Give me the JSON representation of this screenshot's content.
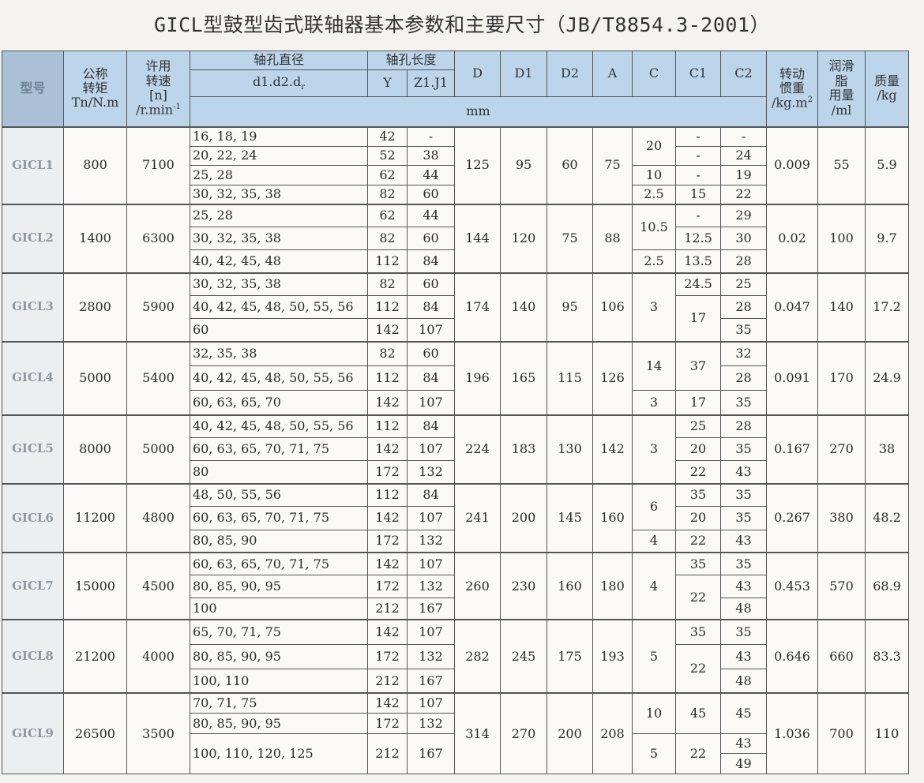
{
  "title": "GICL型鼓型齿式联轴器基本参数和主要尺寸（JB/T8854.3-2001）",
  "header": {
    "model": "型号",
    "torque": [
      "公称",
      "转矩",
      "Tn/N.m"
    ],
    "speed": [
      "许用",
      "转速",
      "[n]",
      "/r.min",
      "-1"
    ],
    "bore_diameter": "轴孔直径",
    "bore_diameter_sub": "d1.d2.d",
    "bore_diameter_sub_index": "r",
    "bore_length": "轴孔长度",
    "y": "Y",
    "z1j1": "Z1.J1",
    "dims": [
      "D",
      "D1",
      "D2",
      "A",
      "C",
      "C1",
      "C2"
    ],
    "unit_mm": "mm",
    "inertia": [
      "转动",
      "惯重",
      "/kg.m",
      "2"
    ],
    "grease": [
      "润滑",
      "脂",
      "用量",
      "/ml"
    ],
    "mass": [
      "质量",
      "/kg"
    ]
  },
  "rows": [
    {
      "model": "GICL1",
      "torque": "800",
      "speed": "7100",
      "bores": [
        {
          "d": "16, 18, 19",
          "y": "42",
          "z": "-",
          "span": 1
        },
        {
          "d": "20, 22, 24",
          "y": "52",
          "z": "38",
          "span": 1
        },
        {
          "d": "25, 28",
          "y": "62",
          "z": "44",
          "span": 1
        },
        {
          "d": "30, 32, 35, 38",
          "y": "82",
          "z": "60",
          "span": 1
        }
      ],
      "D": "125",
      "D1": "95",
      "D2": "60",
      "A": "75",
      "C": [
        {
          "v": "20",
          "span": 2
        },
        {
          "v": "10",
          "span": 1
        },
        {
          "v": "2.5",
          "span": 1
        }
      ],
      "C1": [
        {
          "v": "-",
          "span": 1
        },
        {
          "v": "-",
          "span": 1
        },
        {
          "v": "-",
          "span": 1
        },
        {
          "v": "15",
          "span": 1
        }
      ],
      "C2": [
        {
          "v": "-",
          "span": 1
        },
        {
          "v": "24",
          "span": 1
        },
        {
          "v": "19",
          "span": 1
        },
        {
          "v": "22",
          "span": 1
        }
      ],
      "inertia": "0.009",
      "grease": "55",
      "mass": "5.9"
    },
    {
      "model": "GICL2",
      "torque": "1400",
      "speed": "6300",
      "bores": [
        {
          "d": "25, 28",
          "y": "62",
          "z": "44",
          "span": 1
        },
        {
          "d": "30, 32, 35, 38",
          "y": "82",
          "z": "60",
          "span": 1
        },
        {
          "d": "40, 42, 45, 48",
          "y": "112",
          "z": "84",
          "span": 1
        }
      ],
      "D": "144",
      "D1": "120",
      "D2": "75",
      "A": "88",
      "C": [
        {
          "v": "10.5",
          "span": 2
        },
        {
          "v": "2.5",
          "span": 1
        }
      ],
      "C1": [
        {
          "v": "-",
          "span": 1
        },
        {
          "v": "12.5",
          "span": 1
        },
        {
          "v": "13.5",
          "span": 1
        }
      ],
      "C2": [
        {
          "v": "29",
          "span": 1
        },
        {
          "v": "30",
          "span": 1
        },
        {
          "v": "28",
          "span": 1
        }
      ],
      "inertia": "0.02",
      "grease": "100",
      "mass": "9.7"
    },
    {
      "model": "GICL3",
      "torque": "2800",
      "speed": "5900",
      "bores": [
        {
          "d": "30, 32, 35, 38",
          "y": "82",
          "z": "60",
          "span": 1
        },
        {
          "d": "40, 42, 45, 48, 50, 55, 56",
          "y": "112",
          "z": "84",
          "span": 1
        },
        {
          "d": "60",
          "y": "142",
          "z": "107",
          "span": 1
        }
      ],
      "D": "174",
      "D1": "140",
      "D2": "95",
      "A": "106",
      "C": [
        {
          "v": "3",
          "span": 3
        }
      ],
      "C1": [
        {
          "v": "24.5",
          "span": 1
        },
        {
          "v": "17",
          "span": 2
        }
      ],
      "C2": [
        {
          "v": "25",
          "span": 1
        },
        {
          "v": "28",
          "span": 1
        },
        {
          "v": "35",
          "span": 1
        }
      ],
      "inertia": "0.047",
      "grease": "140",
      "mass": "17.2"
    },
    {
      "model": "GICL4",
      "torque": "5000",
      "speed": "5400",
      "bores": [
        {
          "d": "32, 35, 38",
          "y": "82",
          "z": "60",
          "span": 1
        },
        {
          "d": "40, 42, 45, 48, 50, 55, 56",
          "y": "112",
          "z": "84",
          "span": 1
        },
        {
          "d": "60, 63, 65, 70",
          "y": "142",
          "z": "107",
          "span": 1
        }
      ],
      "D": "196",
      "D1": "165",
      "D2": "115",
      "A": "126",
      "C": [
        {
          "v": "14",
          "span": 2
        },
        {
          "v": "3",
          "span": 1
        }
      ],
      "C1": [
        {
          "v": "37",
          "span": 2
        },
        {
          "v": "17",
          "span": 1
        }
      ],
      "C2": [
        {
          "v": "32",
          "span": 1
        },
        {
          "v": "28",
          "span": 1
        },
        {
          "v": "35",
          "span": 1
        }
      ],
      "inertia": "0.091",
      "grease": "170",
      "mass": "24.9"
    },
    {
      "model": "GICL5",
      "torque": "8000",
      "speed": "5000",
      "bores": [
        {
          "d": "40, 42, 45, 48, 50, 55, 56",
          "y": "112",
          "z": "84",
          "span": 1
        },
        {
          "d": "60, 63, 65, 70, 71, 75",
          "y": "142",
          "z": "107",
          "span": 1
        },
        {
          "d": "80",
          "y": "172",
          "z": "132",
          "span": 1
        }
      ],
      "D": "224",
      "D1": "183",
      "D2": "130",
      "A": "142",
      "C": [
        {
          "v": "3",
          "span": 3
        }
      ],
      "C1": [
        {
          "v": "25",
          "span": 1
        },
        {
          "v": "20",
          "span": 1
        },
        {
          "v": "22",
          "span": 1
        }
      ],
      "C2": [
        {
          "v": "28",
          "span": 1
        },
        {
          "v": "35",
          "span": 1
        },
        {
          "v": "43",
          "span": 1
        }
      ],
      "inertia": "0.167",
      "grease": "270",
      "mass": "38"
    },
    {
      "model": "GICL6",
      "torque": "11200",
      "speed": "4800",
      "bores": [
        {
          "d": "48, 50, 55, 56",
          "y": "112",
          "z": "84",
          "span": 1
        },
        {
          "d": "60, 63, 65, 70, 71, 75",
          "y": "142",
          "z": "107",
          "span": 1
        },
        {
          "d": "80, 85, 90",
          "y": "172",
          "z": "132",
          "span": 1
        }
      ],
      "D": "241",
      "D1": "200",
      "D2": "145",
      "A": "160",
      "C": [
        {
          "v": "6",
          "span": 2
        },
        {
          "v": "4",
          "span": 1
        }
      ],
      "C1": [
        {
          "v": "35",
          "span": 1
        },
        {
          "v": "20",
          "span": 1
        },
        {
          "v": "22",
          "span": 1
        }
      ],
      "C2": [
        {
          "v": "35",
          "span": 1
        },
        {
          "v": "35",
          "span": 1
        },
        {
          "v": "43",
          "span": 1
        }
      ],
      "inertia": "0.267",
      "grease": "380",
      "mass": "48.2"
    },
    {
      "model": "GICL7",
      "torque": "15000",
      "speed": "4500",
      "bores": [
        {
          "d": "60, 63, 65, 70, 71, 75",
          "y": "142",
          "z": "107",
          "span": 1
        },
        {
          "d": "80, 85, 90, 95",
          "y": "172",
          "z": "132",
          "span": 1
        },
        {
          "d": "100",
          "y": "212",
          "z": "167",
          "span": 1
        }
      ],
      "D": "260",
      "D1": "230",
      "D2": "160",
      "A": "180",
      "C": [
        {
          "v": "4",
          "span": 3
        }
      ],
      "C1": [
        {
          "v": "35",
          "span": 1
        },
        {
          "v": "22",
          "span": 2
        }
      ],
      "C2": [
        {
          "v": "35",
          "span": 1
        },
        {
          "v": "43",
          "span": 1
        },
        {
          "v": "48",
          "span": 1
        }
      ],
      "inertia": "0.453",
      "grease": "570",
      "mass": "68.9"
    },
    {
      "model": "GICL8",
      "torque": "21200",
      "speed": "4000",
      "bores": [
        {
          "d": "65, 70, 71, 75",
          "y": "142",
          "z": "107",
          "span": 1
        },
        {
          "d": "80, 85, 90, 95",
          "y": "172",
          "z": "132",
          "span": 1
        },
        {
          "d": "100, 110",
          "y": "212",
          "z": "167",
          "span": 1
        }
      ],
      "D": "282",
      "D1": "245",
      "D2": "175",
      "A": "193",
      "C": [
        {
          "v": "5",
          "span": 3
        }
      ],
      "C1": [
        {
          "v": "35",
          "span": 1
        },
        {
          "v": "22",
          "span": 2
        }
      ],
      "C2": [
        {
          "v": "35",
          "span": 1
        },
        {
          "v": "43",
          "span": 1
        },
        {
          "v": "48",
          "span": 1
        }
      ],
      "inertia": "0.646",
      "grease": "660",
      "mass": "83.3"
    },
    {
      "model": "GICL9",
      "torque": "26500",
      "speed": "3500",
      "bores": [
        {
          "d": "70, 71, 75",
          "y": "142",
          "z": "107",
          "span": 1
        },
        {
          "d": "80, 85, 90, 95",
          "y": "172",
          "z": "132",
          "span": 1
        },
        {
          "d": "100, 110, 120, 125",
          "y": "212",
          "z": "167",
          "span": 2
        }
      ],
      "D": "314",
      "D1": "270",
      "D2": "200",
      "A": "208",
      "C": [
        {
          "v": "10",
          "span": 2
        },
        {
          "v": "5",
          "span": 2
        }
      ],
      "C1": [
        {
          "v": "45",
          "span": 2
        },
        {
          "v": "22",
          "span": 2
        }
      ],
      "C2": [
        {
          "v": "45",
          "span": 2
        },
        {
          "v": "43",
          "span": 1
        },
        {
          "v": "49",
          "span": 1
        }
      ],
      "inertia": "1.036",
      "grease": "700",
      "mass": "110"
    }
  ]
}
